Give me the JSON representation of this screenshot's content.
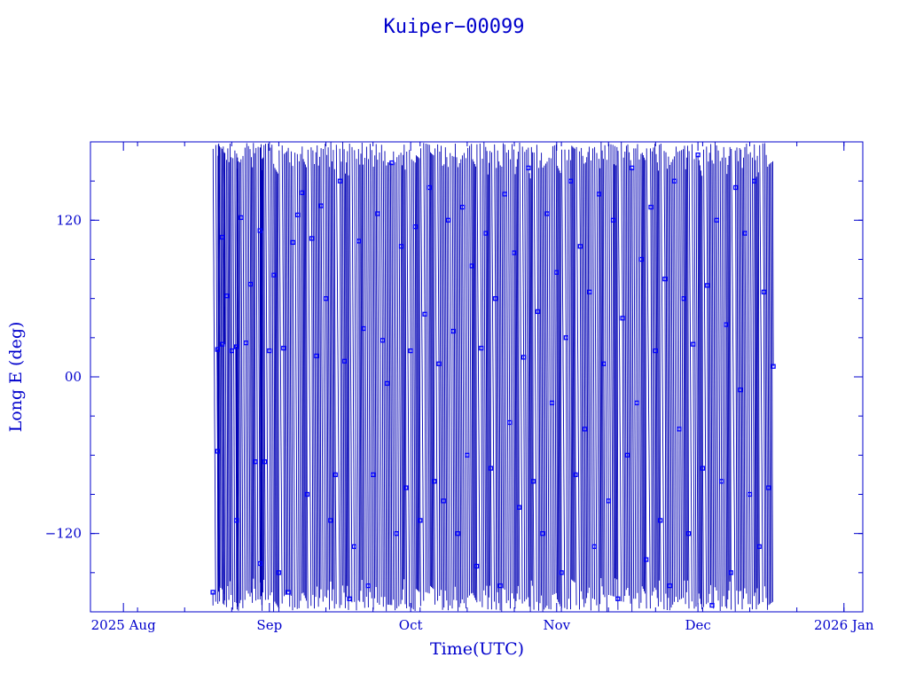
{
  "chart_data": {
    "type": "line",
    "title": "Kuiper−00099",
    "xlabel": "Time(UTC)",
    "ylabel": "Long E (deg)",
    "x_ticks": [
      "2025 Aug",
      "Sep",
      "Oct",
      "Nov",
      "Dec",
      "2026 Jan"
    ],
    "x_tick_dates": [
      "2025-08-01",
      "2025-09-01",
      "2025-10-01",
      "2025-11-01",
      "2025-12-01",
      "2026-01-01"
    ],
    "xlim": [
      "2025-07-25",
      "2026-01-05"
    ],
    "y_ticks": [
      "−120",
      "00",
      "120"
    ],
    "y_tick_values": [
      -120,
      0,
      120
    ],
    "ylim": [
      -180,
      180
    ],
    "grid": false,
    "series": [
      {
        "x_start": "2025-08-20",
        "x_end": "2025-12-17",
        "marker": "square",
        "y_wrap": [
          -180,
          180
        ],
        "points": [
          [
            "2025-08-20",
            -165
          ],
          [
            "2025-08-21",
            -57
          ],
          [
            "2025-08-21",
            21
          ],
          [
            "2025-08-22",
            107
          ],
          [
            "2025-08-22",
            25
          ],
          [
            "2025-08-23",
            62
          ],
          [
            "2025-08-24",
            20
          ],
          [
            "2025-08-25",
            -110
          ],
          [
            "2025-08-25",
            23
          ],
          [
            "2025-08-26",
            122
          ],
          [
            "2025-08-27",
            26
          ],
          [
            "2025-08-28",
            71
          ],
          [
            "2025-08-29",
            -65
          ],
          [
            "2025-08-30",
            -143
          ],
          [
            "2025-08-30",
            112
          ],
          [
            "2025-08-31",
            -65
          ],
          [
            "2025-09-01",
            20
          ],
          [
            "2025-09-02",
            78
          ],
          [
            "2025-09-03",
            -150
          ],
          [
            "2025-09-04",
            22
          ],
          [
            "2025-09-05",
            -165
          ],
          [
            "2025-09-06",
            103
          ],
          [
            "2025-09-07",
            124
          ],
          [
            "2025-09-08",
            141
          ],
          [
            "2025-09-09",
            -90
          ],
          [
            "2025-09-10",
            106
          ],
          [
            "2025-09-11",
            16
          ],
          [
            "2025-09-12",
            131
          ],
          [
            "2025-09-13",
            60
          ],
          [
            "2025-09-14",
            -110
          ],
          [
            "2025-09-15",
            -75
          ],
          [
            "2025-09-16",
            150
          ],
          [
            "2025-09-17",
            12
          ],
          [
            "2025-09-18",
            -170
          ],
          [
            "2025-09-19",
            -130
          ],
          [
            "2025-09-20",
            104
          ],
          [
            "2025-09-21",
            37
          ],
          [
            "2025-09-22",
            -160
          ],
          [
            "2025-09-23",
            -75
          ],
          [
            "2025-09-24",
            125
          ],
          [
            "2025-09-25",
            28
          ],
          [
            "2025-09-26",
            -5
          ],
          [
            "2025-09-27",
            164
          ],
          [
            "2025-09-28",
            -120
          ],
          [
            "2025-09-29",
            100
          ],
          [
            "2025-09-30",
            -85
          ],
          [
            "2025-10-01",
            20
          ],
          [
            "2025-10-02",
            115
          ],
          [
            "2025-10-03",
            -110
          ],
          [
            "2025-10-04",
            48
          ],
          [
            "2025-10-05",
            145
          ],
          [
            "2025-10-06",
            -80
          ],
          [
            "2025-10-07",
            10
          ],
          [
            "2025-10-08",
            -95
          ],
          [
            "2025-10-09",
            120
          ],
          [
            "2025-10-10",
            35
          ],
          [
            "2025-10-11",
            -120
          ],
          [
            "2025-10-12",
            130
          ],
          [
            "2025-10-13",
            -60
          ],
          [
            "2025-10-14",
            85
          ],
          [
            "2025-10-15",
            -145
          ],
          [
            "2025-10-16",
            22
          ],
          [
            "2025-10-17",
            110
          ],
          [
            "2025-10-18",
            -70
          ],
          [
            "2025-10-19",
            60
          ],
          [
            "2025-10-20",
            -160
          ],
          [
            "2025-10-21",
            140
          ],
          [
            "2025-10-22",
            -35
          ],
          [
            "2025-10-23",
            95
          ],
          [
            "2025-10-24",
            -100
          ],
          [
            "2025-10-25",
            15
          ],
          [
            "2025-10-26",
            160
          ],
          [
            "2025-10-27",
            -80
          ],
          [
            "2025-10-28",
            50
          ],
          [
            "2025-10-29",
            -120
          ],
          [
            "2025-10-30",
            125
          ],
          [
            "2025-10-31",
            -20
          ],
          [
            "2025-11-01",
            80
          ],
          [
            "2025-11-02",
            -150
          ],
          [
            "2025-11-03",
            30
          ],
          [
            "2025-11-04",
            150
          ],
          [
            "2025-11-05",
            -75
          ],
          [
            "2025-11-06",
            100
          ],
          [
            "2025-11-07",
            -40
          ],
          [
            "2025-11-08",
            65
          ],
          [
            "2025-11-09",
            -130
          ],
          [
            "2025-11-10",
            140
          ],
          [
            "2025-11-11",
            10
          ],
          [
            "2025-11-12",
            -95
          ],
          [
            "2025-11-13",
            120
          ],
          [
            "2025-11-14",
            -170
          ],
          [
            "2025-11-15",
            45
          ],
          [
            "2025-11-16",
            -60
          ],
          [
            "2025-11-17",
            160
          ],
          [
            "2025-11-18",
            -20
          ],
          [
            "2025-11-19",
            90
          ],
          [
            "2025-11-20",
            -140
          ],
          [
            "2025-11-21",
            130
          ],
          [
            "2025-11-22",
            20
          ],
          [
            "2025-11-23",
            -110
          ],
          [
            "2025-11-24",
            75
          ],
          [
            "2025-11-25",
            -160
          ],
          [
            "2025-11-26",
            150
          ],
          [
            "2025-11-27",
            -40
          ],
          [
            "2025-11-28",
            60
          ],
          [
            "2025-11-29",
            -120
          ],
          [
            "2025-11-30",
            25
          ],
          [
            "2025-12-01",
            170
          ],
          [
            "2025-12-02",
            -70
          ],
          [
            "2025-12-03",
            70
          ],
          [
            "2025-12-04",
            -175
          ],
          [
            "2025-12-05",
            120
          ],
          [
            "2025-12-06",
            -80
          ],
          [
            "2025-12-07",
            40
          ],
          [
            "2025-12-08",
            -150
          ],
          [
            "2025-12-09",
            145
          ],
          [
            "2025-12-10",
            -10
          ],
          [
            "2025-12-11",
            110
          ],
          [
            "2025-12-12",
            -90
          ],
          [
            "2025-12-13",
            150
          ],
          [
            "2025-12-14",
            -130
          ],
          [
            "2025-12-15",
            65
          ],
          [
            "2025-12-16",
            -85
          ],
          [
            "2025-12-17",
            8
          ]
        ]
      }
    ]
  }
}
